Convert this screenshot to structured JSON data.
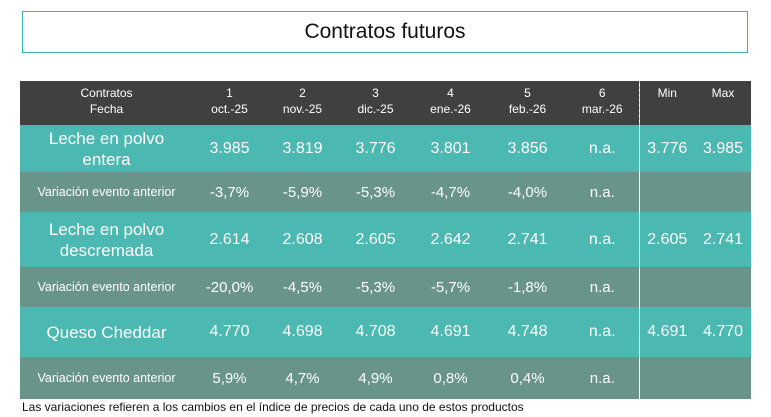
{
  "title": "Contratos futuros",
  "header": {
    "label_line1": "Contratos",
    "label_line2": "Fecha",
    "columns": [
      {
        "num": "1",
        "date": "oct.-25"
      },
      {
        "num": "2",
        "date": "nov.-25"
      },
      {
        "num": "3",
        "date": "dic.-25"
      },
      {
        "num": "4",
        "date": "ene.-26"
      },
      {
        "num": "5",
        "date": "feb.-26"
      },
      {
        "num": "6",
        "date": "mar.-26"
      }
    ],
    "min": "Min",
    "max": "Max"
  },
  "rows": [
    {
      "label_line1": "Leche en polvo",
      "label_line2": "entera",
      "values": [
        "3.985",
        "3.819",
        "3.776",
        "3.801",
        "3.856",
        "n.a."
      ],
      "min": "3.776",
      "max": "3.985"
    },
    {
      "label": "Variación evento anterior",
      "values": [
        "-3,7%",
        "-5,9%",
        "-5,3%",
        "-4,7%",
        "-4,0%",
        "n.a."
      ],
      "min": "",
      "max": ""
    },
    {
      "label_line1": "Leche en polvo",
      "label_line2": "descremada",
      "values": [
        "2.614",
        "2.608",
        "2.605",
        "2.642",
        "2.741",
        "n.a."
      ],
      "min": "2.605",
      "max": "2.741"
    },
    {
      "label": "Variación evento anterior",
      "values": [
        "-20,0%",
        "-4,5%",
        "-5,3%",
        "-5,7%",
        "-1,8%",
        "n.a."
      ],
      "min": "",
      "max": ""
    },
    {
      "label": "Queso Cheddar",
      "values": [
        "4.770",
        "4.698",
        "4.708",
        "4.691",
        "4.748",
        "n.a."
      ],
      "min": "4.691",
      "max": "4.770"
    },
    {
      "label": "Variación evento anterior",
      "values": [
        "5,9%",
        "4,7%",
        "4,9%",
        "0,8%",
        "0,4%",
        "n.a."
      ],
      "min": "",
      "max": ""
    }
  ],
  "footnote": "Las variaciones refieren a los cambios en el índice de precios de cada uno de estos productos",
  "colors": {
    "header_bg": "#404040",
    "main_row_bg": "#4bb8b2",
    "variation_row_bg": "#699489",
    "title_border": "#3bb3ad"
  }
}
